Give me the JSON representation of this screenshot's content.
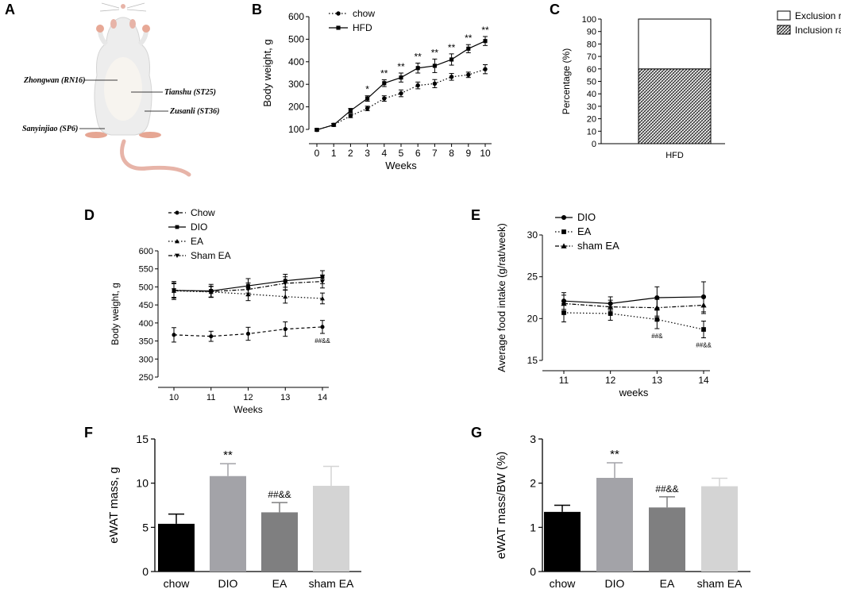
{
  "panels": {
    "A": "A",
    "B": "B",
    "C": "C",
    "D": "D",
    "E": "E",
    "F": "F",
    "G": "G"
  },
  "acupoints": [
    "Zhongwan (RN16)",
    "Tianshu (ST25)",
    "Zusanli (ST36)",
    "Sanyinjiao (SP6)"
  ],
  "chart_data": [
    {
      "id": "B",
      "type": "line",
      "x": [
        0,
        1,
        2,
        3,
        4,
        5,
        6,
        7,
        8,
        9,
        10
      ],
      "series": [
        {
          "name": "chow",
          "marker": "circle",
          "dash": "dotted",
          "values": [
            98,
            120,
            160,
            193,
            237,
            260,
            295,
            303,
            333,
            342,
            367
          ],
          "errors": [
            5,
            6,
            8,
            10,
            12,
            15,
            15,
            18,
            15,
            12,
            20
          ]
        },
        {
          "name": "HFD",
          "marker": "square",
          "dash": "solid",
          "values": [
            98,
            120,
            183,
            237,
            305,
            330,
            372,
            382,
            410,
            458,
            492
          ],
          "errors": [
            5,
            6,
            10,
            12,
            15,
            20,
            22,
            30,
            25,
            18,
            20
          ]
        }
      ],
      "annotations": [
        "",
        "",
        "",
        "*",
        "**",
        "**",
        "**",
        "**",
        "**",
        "**",
        "**"
      ],
      "xlabel": "Weeks",
      "ylabel": "Body weight, g",
      "ylim": [
        100,
        600
      ],
      "yticks": [
        100,
        200,
        300,
        400,
        500,
        600
      ]
    },
    {
      "id": "C",
      "type": "bar",
      "categories": [
        "HFD"
      ],
      "series": [
        {
          "name": "Exclusion rats",
          "values": [
            40
          ]
        },
        {
          "name": "Inclusion rats",
          "values": [
            60
          ]
        }
      ],
      "ylabel": "Percentage (%)",
      "ylim": [
        0,
        100
      ],
      "yticks": [
        0,
        10,
        20,
        30,
        40,
        50,
        60,
        70,
        80,
        90,
        100
      ]
    },
    {
      "id": "D",
      "type": "line",
      "x": [
        10,
        11,
        12,
        13,
        14
      ],
      "series": [
        {
          "name": "Chow",
          "marker": "circle",
          "dash": "dashed",
          "values": [
            367,
            363,
            370,
            383,
            389
          ],
          "errors": [
            20,
            14,
            18,
            20,
            18
          ]
        },
        {
          "name": "DIO",
          "marker": "square",
          "dash": "solid",
          "values": [
            490,
            489,
            503,
            517,
            527
          ],
          "errors": [
            25,
            18,
            20,
            18,
            18
          ]
        },
        {
          "name": "EA",
          "marker": "triangle",
          "dash": "dotted",
          "values": [
            489,
            486,
            480,
            473,
            468
          ],
          "errors": [
            20,
            15,
            18,
            18,
            15
          ]
        },
        {
          "name": "Sham EA",
          "marker": "invtriangle",
          "dash": "dashdot",
          "values": [
            491,
            487,
            493,
            510,
            515
          ],
          "errors": [
            20,
            15,
            18,
            18,
            18
          ]
        }
      ],
      "annotations": [
        "",
        "",
        "",
        "",
        "##&&"
      ],
      "xlabel": "Weeks",
      "ylabel": "Body weight, g",
      "ylim": [
        250,
        600
      ],
      "yticks": [
        250,
        300,
        350,
        400,
        450,
        500,
        550,
        600
      ]
    },
    {
      "id": "E",
      "type": "line",
      "x": [
        11,
        12,
        13,
        14
      ],
      "series": [
        {
          "name": "DIO",
          "marker": "circle",
          "dash": "solid",
          "values": [
            22.1,
            21.8,
            22.5,
            22.6
          ],
          "errors": [
            1.0,
            0.8,
            1.3,
            1.8
          ]
        },
        {
          "name": "EA",
          "marker": "square",
          "dash": "dotted",
          "values": [
            20.7,
            20.6,
            19.9,
            18.7
          ],
          "errors": [
            1.1,
            0.8,
            1.1,
            1.0
          ]
        },
        {
          "name": "sham EA",
          "marker": "triangle",
          "dash": "dashdot",
          "values": [
            21.8,
            21.4,
            21.3,
            21.6
          ],
          "errors": [
            1.0,
            0.8,
            1.0,
            1.0
          ]
        }
      ],
      "annotations": [
        "",
        "",
        "##&",
        "##&&"
      ],
      "xlabel": "weeks",
      "ylabel": "Average food intake (g/rat/week)",
      "ylim": [
        15,
        30
      ],
      "yticks": [
        15,
        20,
        25,
        30
      ]
    },
    {
      "id": "F",
      "type": "bar",
      "categories": [
        "chow",
        "DIO",
        "EA",
        "sham EA"
      ],
      "values": [
        5.4,
        10.8,
        6.7,
        9.7
      ],
      "errors": [
        1.1,
        1.4,
        1.1,
        2.2
      ],
      "colors": [
        "#000000",
        "#a3a3a8",
        "#7f7f80",
        "#d4d4d4"
      ],
      "annotations": [
        "",
        "**",
        "##&&",
        ""
      ],
      "ylabel": "eWAT mass, g",
      "ylim": [
        0,
        15
      ],
      "yticks": [
        0,
        5,
        10,
        15
      ]
    },
    {
      "id": "G",
      "type": "bar",
      "categories": [
        "chow",
        "DIO",
        "EA",
        "sham EA"
      ],
      "values": [
        1.35,
        2.12,
        1.45,
        1.93
      ],
      "errors": [
        0.15,
        0.34,
        0.24,
        0.18
      ],
      "colors": [
        "#000000",
        "#a3a3a8",
        "#7f7f80",
        "#d4d4d4"
      ],
      "annotations": [
        "",
        "**",
        "##&&",
        ""
      ],
      "ylabel": "eWAT mass/BW (%)",
      "ylim": [
        0,
        3
      ],
      "yticks": [
        0,
        1,
        2,
        3
      ]
    }
  ]
}
